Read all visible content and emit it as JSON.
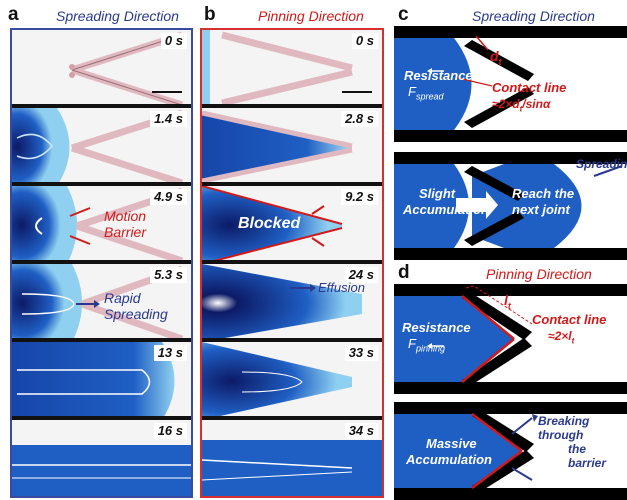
{
  "panel_a": {
    "label": "a",
    "title": "Spreading Direction",
    "times": [
      "0 s",
      "1.4 s",
      "4.9 s",
      "5.3 s",
      "13 s",
      "16 s"
    ],
    "ann_motion": "Motion",
    "ann_barrier": "Barrier",
    "ann_rapid": "Rapid",
    "ann_spreading": "Spreading"
  },
  "panel_b": {
    "label": "b",
    "title": "Pinning Direction",
    "times": [
      "0 s",
      "2.8 s",
      "9.2 s",
      "24 s",
      "33 s",
      "34 s"
    ],
    "ann_blocked": "Blocked",
    "ann_effusion": "Effusion"
  },
  "panel_c": {
    "label": "c",
    "title": "Spreading Direction",
    "resistance": "Resistance",
    "f_main": "F",
    "f_sub": "spread",
    "dt_main": "d",
    "dt_sub": "t",
    "contact_line": "Contact line",
    "formula_pre": "≈2×d",
    "formula_sub": "t",
    "formula_post": "/sinα",
    "slight": "Slight",
    "accumulation": "Accumulation",
    "reach1": "Reach the",
    "reach2": "next joint",
    "spreading_arrow": "Spreading"
  },
  "panel_d": {
    "label": "d",
    "title": "Pinning Direction",
    "resistance": "Resistance",
    "f_main": "F",
    "f_sub": "pinning",
    "lt_main": "l",
    "lt_sub": "t",
    "contact_line": "Contact line",
    "formula_pre": "≈2×l",
    "formula_sub": "t",
    "massive": "Massive",
    "accumulation": "Accumulation",
    "break1": "Breaking through",
    "break2": "the barrier"
  },
  "colors": {
    "liquid_blue": "#1f5fc4",
    "dark_blue": "#0d1a66",
    "title_blue": "#2b3a8c",
    "accent_red": "#d11a1a"
  }
}
